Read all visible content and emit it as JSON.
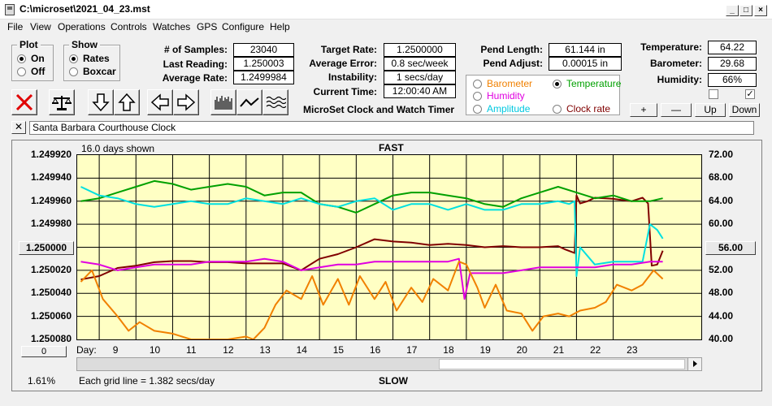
{
  "window": {
    "title": "C:\\microset\\2021_04_23.mst"
  },
  "menu": [
    "File",
    "View",
    "Operations",
    "Controls",
    "Watches",
    "GPS",
    "Configure",
    "Help"
  ],
  "plot_group": {
    "label": "Plot",
    "on": "On",
    "off": "Off",
    "selected": "On"
  },
  "show_group": {
    "label": "Show",
    "rates": "Rates",
    "boxcar": "Boxcar",
    "selected": "Rates"
  },
  "stats": {
    "samples_label": "# of Samples:",
    "samples": "23040",
    "last_label": "Last Reading:",
    "last": "1.250003",
    "avg_label": "Average Rate:",
    "avg": "1.2499984",
    "target_label": "Target Rate:",
    "target": "1.2500000",
    "avgerr_label": "Average Error:",
    "avgerr": "0.8 sec/week",
    "instab_label": "Instability:",
    "instab": "1 secs/day",
    "time_label": "Current Time:",
    "time": "12:00:40 AM",
    "pendlen_label": "Pend Length:",
    "pendlen": "61.144 in",
    "pendadj_label": "Pend Adjust:",
    "pendadj": "0.00015 in",
    "temp_label": "Temperature:",
    "temp": "64.22",
    "baro_label": "Barometer:",
    "baro": "29.68",
    "hum_label": "Humidity:",
    "hum": "66%"
  },
  "app_heading": "MicroSet Clock and Watch Timer",
  "sensor_options": {
    "barometer": "Barometer",
    "temperature": "Temperature",
    "humidity": "Humidity",
    "amplitude": "Amplitude",
    "clockrate": "Clock rate",
    "selected": "Temperature"
  },
  "scale_buttons": {
    "plus": "+",
    "minus": "—",
    "up": "Up",
    "down": "Down"
  },
  "checkboxes": {
    "left_checked": false,
    "right_checked": true
  },
  "clock_name": "Santa Barbara Courthouse Clock",
  "graph": {
    "days_shown": "16.0 days shown",
    "top_label": "FAST",
    "bottom_label": "SLOW",
    "left_value": "1.250000",
    "right_value": "56.00",
    "zero_button": "0",
    "percent": "1.61%",
    "grid_note": "Each grid line = 1.382 secs/day",
    "day_prefix": "Day:"
  },
  "chart_data": {
    "type": "line",
    "x_label": "Day",
    "x_ticks": [
      9,
      10,
      11,
      12,
      13,
      14,
      15,
      16,
      17,
      18,
      19,
      20,
      21,
      22,
      23
    ],
    "xlim": [
      7.9,
      24.9
    ],
    "left_axis": {
      "ticks": [
        "1.249920",
        "1.249940",
        "1.249960",
        "1.249980",
        "1.250000",
        "1.250020",
        "1.250040",
        "1.250060",
        "1.250080"
      ],
      "ylim": [
        1.24992,
        1.25008
      ],
      "inverted": true
    },
    "right_axis": {
      "ticks": [
        "72.00",
        "68.00",
        "64.00",
        "60.00",
        "56.00",
        "52.00",
        "48.00",
        "44.00",
        "40.00"
      ],
      "ylim": [
        40,
        72
      ]
    },
    "series": [
      {
        "color": "#800000",
        "axis": "left",
        "x": [
          8.0,
          8.5,
          9.0,
          9.5,
          10.0,
          10.5,
          11.0,
          11.5,
          12.0,
          12.5,
          13.0,
          13.5,
          14.0,
          14.5,
          15.0,
          15.5,
          16.0,
          16.5,
          17.0,
          17.5,
          18.0,
          18.5,
          19.0,
          19.5,
          20.0,
          20.5,
          21.0,
          21.2,
          21.45,
          21.5,
          21.6,
          21.8,
          22.0,
          22.5,
          23.0,
          23.3,
          23.45,
          23.55,
          23.7,
          23.85
        ],
        "y": [
          1.250028,
          1.250025,
          1.250018,
          1.250016,
          1.250013,
          1.250012,
          1.250012,
          1.250013,
          1.250013,
          1.250014,
          1.250014,
          1.250014,
          1.25002,
          1.25001,
          1.250006,
          1.25,
          1.249993,
          1.249995,
          1.249996,
          1.249998,
          1.249997,
          1.249998,
          1.25,
          1.249999,
          1.25,
          1.25,
          1.249999,
          1.250002,
          1.250005,
          1.249955,
          1.249962,
          1.24996,
          1.249957,
          1.249958,
          1.24996,
          1.249957,
          1.249962,
          1.250016,
          1.250015,
          1.250003
        ]
      },
      {
        "color": "#00a000",
        "axis": "right",
        "x": [
          8.0,
          8.5,
          9.0,
          9.5,
          10.0,
          10.5,
          11.0,
          11.5,
          12.0,
          12.5,
          13.0,
          13.5,
          14.0,
          14.5,
          15.0,
          15.5,
          16.0,
          16.5,
          17.0,
          17.5,
          18.0,
          18.5,
          19.0,
          19.5,
          20.0,
          20.5,
          21.0,
          21.5,
          22.0,
          22.5,
          23.0,
          23.5,
          23.85
        ],
        "y": [
          64.0,
          64.5,
          65.5,
          66.5,
          67.5,
          67.0,
          66.0,
          66.5,
          67.0,
          66.5,
          65.0,
          65.5,
          65.5,
          63.5,
          63.0,
          62.0,
          63.5,
          65.0,
          65.5,
          65.5,
          65.0,
          64.5,
          63.5,
          63.0,
          64.5,
          65.5,
          66.5,
          65.5,
          64.5,
          65.0,
          64.0,
          64.0,
          64.5
        ]
      },
      {
        "color": "#00e0e0",
        "axis": "right",
        "x": [
          8.0,
          8.5,
          9.0,
          9.5,
          10.0,
          10.5,
          11.0,
          11.5,
          12.0,
          12.5,
          13.0,
          13.5,
          14.0,
          14.5,
          15.0,
          15.5,
          16.0,
          16.5,
          17.0,
          17.5,
          18.0,
          18.5,
          19.0,
          19.5,
          20.0,
          20.5,
          21.0,
          21.3,
          21.45,
          21.5,
          21.6,
          22.0,
          22.5,
          23.0,
          23.3,
          23.5,
          23.7,
          23.85
        ],
        "y": [
          66.5,
          65.0,
          64.5,
          63.5,
          63.0,
          63.5,
          64.0,
          63.5,
          63.5,
          64.5,
          64.0,
          63.5,
          64.5,
          63.5,
          63.0,
          64.0,
          64.5,
          62.5,
          63.5,
          63.5,
          62.5,
          63.5,
          62.5,
          62.5,
          63.5,
          63.5,
          64.0,
          63.5,
          64.0,
          51.0,
          56.0,
          53.0,
          53.5,
          53.5,
          53.5,
          60.0,
          59.0,
          57.5
        ]
      },
      {
        "color": "#e000e0",
        "axis": "right",
        "x": [
          8.0,
          8.5,
          9.0,
          9.5,
          10.0,
          10.5,
          11.0,
          11.5,
          12.0,
          12.5,
          13.0,
          13.5,
          14.0,
          14.5,
          15.0,
          15.5,
          16.0,
          16.5,
          17.0,
          17.5,
          18.0,
          18.3,
          18.45,
          18.6,
          19.0,
          19.5,
          20.0,
          20.5,
          21.0,
          21.5,
          22.0,
          22.5,
          23.0,
          23.5,
          23.85
        ],
        "y": [
          53.5,
          53.0,
          52.0,
          52.5,
          53.0,
          53.0,
          53.0,
          53.5,
          53.5,
          53.5,
          54.0,
          53.5,
          52.0,
          52.5,
          53.0,
          53.0,
          53.5,
          53.5,
          53.5,
          53.5,
          53.5,
          54.0,
          47.0,
          51.5,
          51.5,
          51.5,
          52.0,
          52.5,
          52.5,
          52.5,
          52.5,
          53.0,
          53.0,
          53.5,
          53.5
        ]
      },
      {
        "color": "#f08000",
        "axis": "right",
        "x": [
          8.0,
          8.3,
          8.6,
          9.0,
          9.3,
          9.6,
          10.0,
          10.5,
          11.0,
          11.5,
          12.0,
          12.5,
          12.7,
          13.0,
          13.3,
          13.6,
          14.0,
          14.3,
          14.6,
          15.0,
          15.3,
          15.6,
          16.0,
          16.3,
          16.6,
          17.0,
          17.3,
          17.6,
          18.0,
          18.3,
          18.5,
          18.8,
          19.0,
          19.3,
          19.6,
          20.0,
          20.3,
          20.6,
          21.0,
          21.3,
          21.6,
          22.0,
          22.3,
          22.6,
          23.0,
          23.3,
          23.6,
          23.85
        ],
        "y": [
          50.0,
          52.0,
          47.0,
          44.0,
          41.5,
          43.0,
          41.5,
          41.0,
          40.0,
          40.0,
          40.0,
          40.5,
          40.0,
          42.0,
          46.0,
          48.5,
          47.0,
          51.0,
          46.0,
          50.5,
          46.0,
          51.0,
          47.0,
          50.0,
          45.0,
          49.0,
          46.5,
          50.5,
          48.5,
          53.5,
          53.0,
          49.0,
          45.5,
          49.5,
          45.0,
          44.5,
          41.5,
          44.0,
          44.5,
          44.0,
          45.0,
          45.5,
          46.5,
          49.5,
          48.5,
          49.5,
          52.0,
          50.5
        ]
      }
    ]
  }
}
